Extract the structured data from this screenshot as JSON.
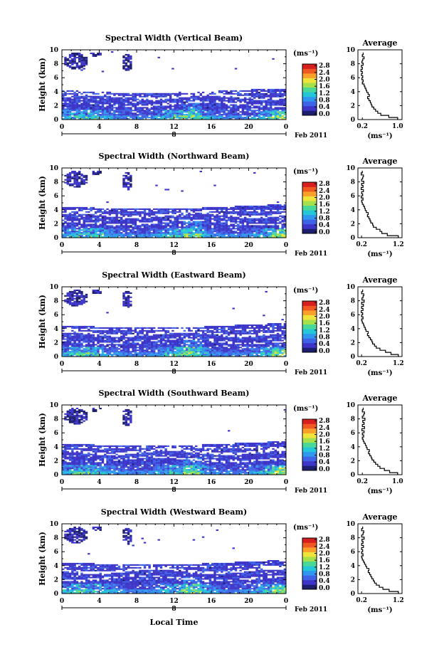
{
  "figure": {
    "x_axis_label": "Local Time",
    "date_label": "Feb 2011",
    "y_axis_label": "Height (km)",
    "colorbar_unit": "(ms⁻¹)",
    "avg_title": "Average",
    "avg_unit": "(ms⁻¹)"
  },
  "colorbar": {
    "ticks": [
      "2.8",
      "2.4",
      "2.0",
      "1.6",
      "1.2",
      "0.8",
      "0.4",
      "0.0"
    ],
    "colors": [
      "#1e1e6e",
      "#3d35c8",
      "#3f63e6",
      "#2f98ee",
      "#24c7d8",
      "#4ad897",
      "#a6e04c",
      "#efe43a",
      "#f9a02b",
      "#f05a22",
      "#d81f1f"
    ]
  },
  "chart_data": [
    {
      "type": "heatmap",
      "title": "Spectral Width (Vertical Beam)",
      "xlabel": "",
      "ylabel": "Height (km)",
      "x_ticks": [
        "0",
        "4",
        "8",
        "12",
        "16",
        "20",
        "0"
      ],
      "date_tick": "8",
      "y_ticks": [
        "0",
        "2",
        "4",
        "6",
        "8",
        "10"
      ],
      "xlim": [
        0,
        24
      ],
      "ylim": [
        0,
        10
      ],
      "colorbar": {
        "label": "(ms⁻¹)",
        "range": [
          0.0,
          2.8
        ]
      },
      "average_profile": {
        "title": "Average",
        "xlabel": "(ms⁻¹)",
        "x_ticks": [
          "0.2",
          "1.0"
        ],
        "xlim": [
          0.1,
          1.1
        ],
        "height_km": [
          0.3,
          0.6,
          0.9,
          1.2,
          1.5,
          1.8,
          2.1,
          2.4,
          2.7,
          3.0,
          3.3,
          3.6,
          3.9,
          4.2,
          4.5,
          4.8,
          5.1,
          5.4,
          5.7,
          6.0,
          6.3,
          6.6,
          6.9,
          7.2,
          7.5,
          7.8,
          8.1,
          8.4,
          8.7,
          9.0,
          9.3,
          9.6
        ],
        "width_ms": [
          1.0,
          0.8,
          0.62,
          0.55,
          0.5,
          0.46,
          0.42,
          0.4,
          0.38,
          0.35,
          0.32,
          0.36,
          0.33,
          0.3,
          0.28,
          0.26,
          0.24,
          0.2,
          0.22,
          0.19,
          0.21,
          0.18,
          0.2,
          0.17,
          0.2,
          0.18,
          0.22,
          0.19,
          0.21,
          0.24,
          0.2,
          0.22
        ]
      }
    },
    {
      "type": "heatmap",
      "title": "Spectral Width (Northward Beam)",
      "xlabel": "",
      "ylabel": "Height (km)",
      "x_ticks": [
        "0",
        "4",
        "8",
        "12",
        "16",
        "20",
        "0"
      ],
      "date_tick": "8",
      "y_ticks": [
        "0",
        "2",
        "4",
        "6",
        "8",
        "10"
      ],
      "xlim": [
        0,
        24
      ],
      "ylim": [
        0,
        10
      ],
      "colorbar": {
        "label": "(ms⁻¹)",
        "range": [
          0.0,
          2.8
        ]
      },
      "average_profile": {
        "title": "Average",
        "xlabel": "(ms⁻¹)",
        "x_ticks": [
          "0.2",
          "1.2"
        ],
        "xlim": [
          0.1,
          1.3
        ],
        "height_km": [
          0.3,
          0.6,
          0.9,
          1.2,
          1.5,
          1.8,
          2.1,
          2.4,
          2.7,
          3.0,
          3.3,
          3.6,
          3.9,
          4.2,
          4.5,
          4.8,
          5.1,
          5.4,
          5.7,
          6.0,
          6.3,
          6.6,
          6.9,
          7.2,
          7.5,
          7.8,
          8.1,
          8.4,
          8.7,
          9.0,
          9.3,
          9.6
        ],
        "width_ms": [
          1.2,
          0.9,
          0.75,
          0.7,
          0.6,
          0.52,
          0.5,
          0.45,
          0.43,
          0.4,
          0.36,
          0.38,
          0.33,
          0.3,
          0.28,
          0.25,
          0.22,
          0.2,
          0.24,
          0.19,
          0.23,
          0.2,
          0.25,
          0.19,
          0.24,
          0.2,
          0.26,
          0.2,
          0.23,
          0.25,
          0.19,
          0.22
        ]
      }
    },
    {
      "type": "heatmap",
      "title": "Spectral Width (Eastward Beam)",
      "xlabel": "",
      "ylabel": "Height (km)",
      "x_ticks": [
        "0",
        "4",
        "8",
        "12",
        "16",
        "20",
        "0"
      ],
      "date_tick": "8",
      "y_ticks": [
        "0",
        "2",
        "4",
        "6",
        "8",
        "10"
      ],
      "xlim": [
        0,
        24
      ],
      "ylim": [
        0,
        10
      ],
      "colorbar": {
        "label": "(ms⁻¹)",
        "range": [
          0.0,
          2.8
        ]
      },
      "average_profile": {
        "title": "Average",
        "xlabel": "(ms⁻¹)",
        "x_ticks": [
          "0.2",
          "1.2"
        ],
        "xlim": [
          0.1,
          1.3
        ],
        "height_km": [
          0.3,
          0.6,
          0.9,
          1.2,
          1.5,
          1.8,
          2.1,
          2.4,
          2.7,
          3.0,
          3.3,
          3.6,
          3.9,
          4.2,
          4.5,
          4.8,
          5.1,
          5.4,
          5.7,
          6.0,
          6.3,
          6.6,
          6.9,
          7.2,
          7.5,
          7.8,
          8.1,
          8.4,
          8.7,
          9.0,
          9.3,
          9.6
        ],
        "width_ms": [
          1.2,
          1.0,
          0.85,
          0.7,
          0.6,
          0.55,
          0.5,
          0.48,
          0.44,
          0.4,
          0.36,
          0.38,
          0.32,
          0.3,
          0.27,
          0.25,
          0.22,
          0.2,
          0.24,
          0.2,
          0.23,
          0.19,
          0.24,
          0.2,
          0.25,
          0.2,
          0.27,
          0.21,
          0.24,
          0.26,
          0.2,
          0.23
        ]
      }
    },
    {
      "type": "heatmap",
      "title": "Spectral Width (Southward Beam)",
      "xlabel": "",
      "ylabel": "Height (km)",
      "x_ticks": [
        "0",
        "4",
        "8",
        "12",
        "16",
        "20",
        "0"
      ],
      "date_tick": "8",
      "y_ticks": [
        "0",
        "2",
        "4",
        "6",
        "8",
        "10"
      ],
      "xlim": [
        0,
        24
      ],
      "ylim": [
        0,
        10
      ],
      "colorbar": {
        "label": "(ms⁻¹)",
        "range": [
          0.0,
          2.8
        ]
      },
      "average_profile": {
        "title": "Average",
        "xlabel": "(ms⁻¹)",
        "x_ticks": [
          "0.2",
          "1.0"
        ],
        "xlim": [
          0.1,
          1.1
        ],
        "height_km": [
          0.3,
          0.6,
          0.9,
          1.2,
          1.5,
          1.8,
          2.1,
          2.4,
          2.7,
          3.0,
          3.3,
          3.6,
          3.9,
          4.2,
          4.5,
          4.8,
          5.1,
          5.4,
          5.7,
          6.0,
          6.3,
          6.6,
          6.9,
          7.2,
          7.5,
          7.8,
          8.1,
          8.4,
          8.7,
          9.0,
          9.3,
          9.6
        ],
        "width_ms": [
          1.0,
          0.82,
          0.7,
          0.6,
          0.55,
          0.5,
          0.46,
          0.42,
          0.4,
          0.37,
          0.34,
          0.36,
          0.31,
          0.29,
          0.27,
          0.24,
          0.22,
          0.2,
          0.23,
          0.2,
          0.24,
          0.19,
          0.25,
          0.2,
          0.24,
          0.21,
          0.26,
          0.2,
          0.23,
          0.25,
          0.2,
          0.22
        ]
      }
    },
    {
      "type": "heatmap",
      "title": "Spectral Width (Westward Beam)",
      "xlabel": "Local Time",
      "ylabel": "Height (km)",
      "x_ticks": [
        "0",
        "4",
        "8",
        "12",
        "16",
        "20",
        "0"
      ],
      "date_tick": "8",
      "y_ticks": [
        "0",
        "2",
        "4",
        "6",
        "8",
        "10"
      ],
      "xlim": [
        0,
        24
      ],
      "ylim": [
        0,
        10
      ],
      "colorbar": {
        "label": "(ms⁻¹)",
        "range": [
          0.0,
          2.8
        ]
      },
      "average_profile": {
        "title": "Average",
        "xlabel": "(ms⁻¹)",
        "x_ticks": [
          "0.2",
          "1.2"
        ],
        "xlim": [
          0.1,
          1.3
        ],
        "height_km": [
          0.3,
          0.6,
          0.9,
          1.2,
          1.5,
          1.8,
          2.1,
          2.4,
          2.7,
          3.0,
          3.3,
          3.6,
          3.9,
          4.2,
          4.5,
          4.8,
          5.1,
          5.4,
          5.7,
          6.0,
          6.3,
          6.6,
          6.9,
          7.2,
          7.5,
          7.8,
          8.1,
          8.4,
          8.7,
          9.0,
          9.3,
          9.6
        ],
        "width_ms": [
          1.2,
          0.95,
          0.78,
          0.68,
          0.6,
          0.55,
          0.52,
          0.48,
          0.45,
          0.42,
          0.38,
          0.4,
          0.34,
          0.31,
          0.28,
          0.25,
          0.22,
          0.2,
          0.24,
          0.2,
          0.23,
          0.2,
          0.25,
          0.2,
          0.24,
          0.21,
          0.27,
          0.2,
          0.24,
          0.26,
          0.2,
          0.23
        ]
      }
    }
  ]
}
